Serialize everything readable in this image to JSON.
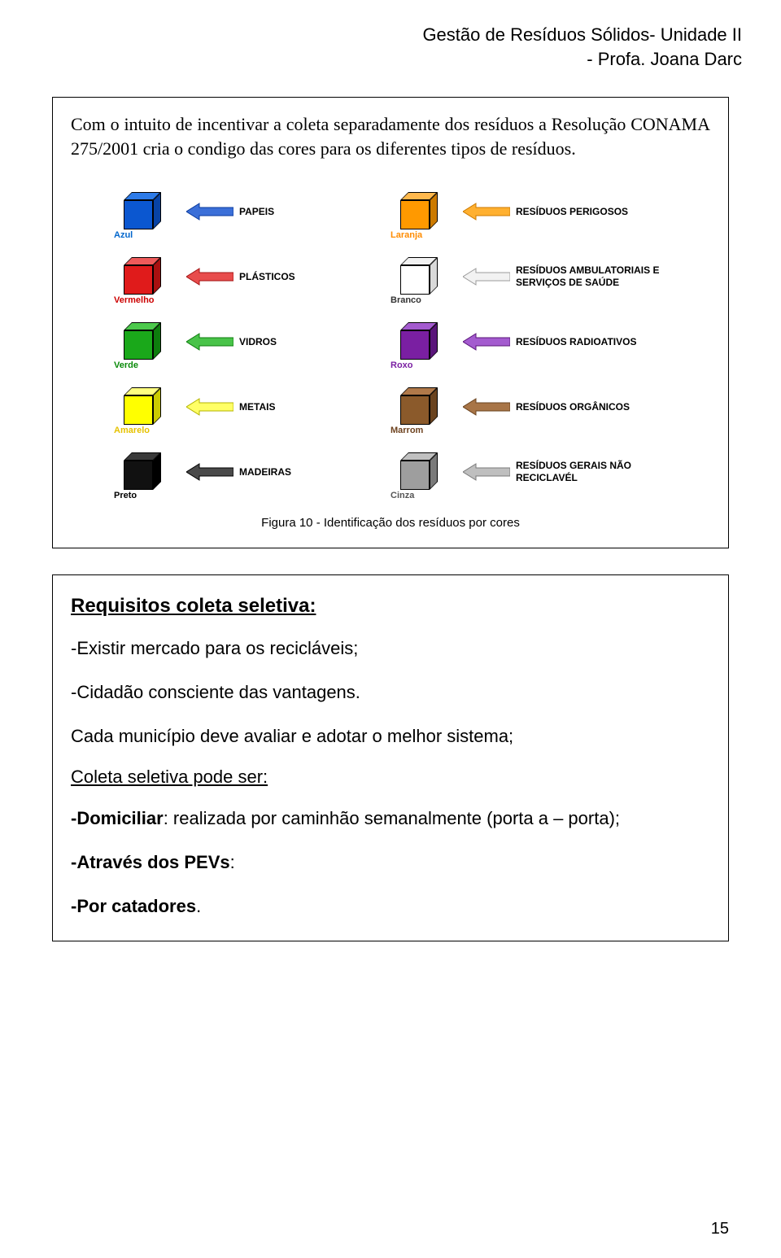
{
  "header": {
    "line1": "Gestão de Resíduos Sólidos- Unidade II",
    "line2": "- Profa. Joana Darc"
  },
  "box1": {
    "intro": "Com o intuito de incentivar a coleta separadamente dos resíduos a Resolução CONAMA 275/2001 cria o condigo das cores para os diferentes tipos de resíduos.",
    "caption": "Figura 10 - Identificação dos resíduos por cores",
    "rows": [
      {
        "left": {
          "color_label": "Azul",
          "label_color": "#0066cc",
          "fill": "#0b57d0",
          "top": "#2d7be8",
          "side": "#0843a5",
          "type": "PAPEIS",
          "arrow_fill": "#3b6fd8",
          "arrow_border": "#0b3b9e"
        },
        "right": {
          "color_label": "Laranja",
          "label_color": "#ff8c00",
          "fill": "#ff9900",
          "top": "#ffb84d",
          "side": "#cc7a00",
          "type": "RESÍDUOS PERIGOSOS",
          "arrow_fill": "#ffb030",
          "arrow_border": "#cc7a00"
        }
      },
      {
        "left": {
          "color_label": "Vermelho",
          "label_color": "#cc0000",
          "fill": "#e01b1b",
          "top": "#ef5a5a",
          "side": "#a91010",
          "type": "PLÁSTICOS",
          "arrow_fill": "#e84c4c",
          "arrow_border": "#a31313"
        },
        "right": {
          "color_label": "Branco",
          "label_color": "#333333",
          "fill": "#ffffff",
          "top": "#f2f2f2",
          "side": "#d9d9d9",
          "type": "RESÍDUOS AMBULATORIAIS E SERVIÇOS DE SAÚDE",
          "arrow_fill": "#f2f2f2",
          "arrow_border": "#9b9b9b"
        }
      },
      {
        "left": {
          "color_label": "Verde",
          "label_color": "#0a8a0a",
          "fill": "#1aa81a",
          "top": "#4cc94c",
          "side": "#0d7d0d",
          "type": "VIDROS",
          "arrow_fill": "#49c349",
          "arrow_border": "#0d7d0d"
        },
        "right": {
          "color_label": "Roxo",
          "label_color": "#7a1fa2",
          "fill": "#7a1fa2",
          "top": "#a45bcf",
          "side": "#5a157a",
          "type": "RESÍDUOS RADIOATIVOS",
          "arrow_fill": "#a45bcf",
          "arrow_border": "#5a157a"
        }
      },
      {
        "left": {
          "color_label": "Amarelo",
          "label_color": "#e6c200",
          "fill": "#ffff00",
          "top": "#ffff80",
          "side": "#cccc00",
          "type": "METAIS",
          "arrow_fill": "#ffff66",
          "arrow_border": "#b3b300"
        },
        "right": {
          "color_label": "Marrom",
          "label_color": "#6e4320",
          "fill": "#8b5a2b",
          "top": "#b0794a",
          "side": "#6a431f",
          "type": "RESÍDUOS ORGÂNICOS",
          "arrow_fill": "#a87547",
          "arrow_border": "#6a431f"
        }
      },
      {
        "left": {
          "color_label": "Preto",
          "label_color": "#000000",
          "fill": "#111111",
          "top": "#3a3a3a",
          "side": "#000000",
          "type": "MADEIRAS",
          "arrow_fill": "#4a4a4a",
          "arrow_border": "#000000"
        },
        "right": {
          "color_label": "Cinza",
          "label_color": "#555555",
          "fill": "#9e9e9e",
          "top": "#c0c0c0",
          "side": "#7a7a7a",
          "type": "RESÍDUOS GERAIS NÃO RECICLAVÉL",
          "arrow_fill": "#bfbfbf",
          "arrow_border": "#7a7a7a"
        }
      }
    ]
  },
  "box2": {
    "heading": "Requisitos coleta seletiva:",
    "l1": "-Existir mercado para os recicláveis;",
    "l2": "-Cidadão consciente das vantagens.",
    "l3": "Cada município deve avaliar e adotar o melhor sistema;",
    "h2": "Coleta seletiva pode ser:",
    "l4_b": "-Domiciliar",
    "l4_r": ": realizada por caminhão semanalmente (porta a – porta);",
    "l5_b": "-Através dos PEVs",
    "l5_r": ":",
    "l6_b": "-Por catadores",
    "l6_r": "."
  },
  "page_number": "15"
}
